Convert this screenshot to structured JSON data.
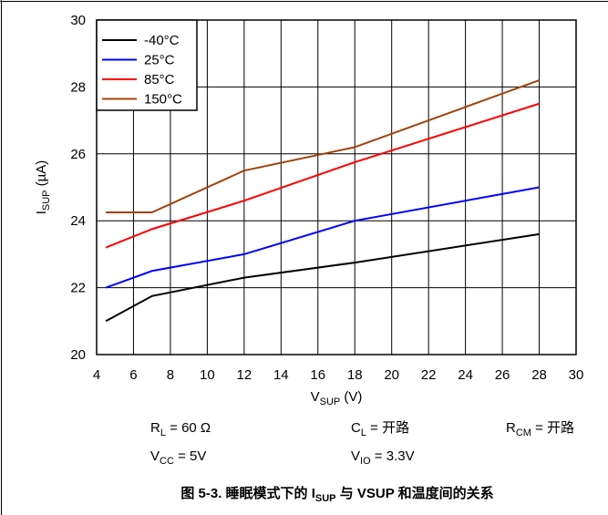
{
  "chart_data": {
    "type": "line",
    "xlabel": [
      {
        "text": "V"
      },
      {
        "text": "SUP",
        "sub": true
      },
      {
        "text": " (V)"
      }
    ],
    "ylabel": [
      {
        "text": "I"
      },
      {
        "text": "SUP",
        "sub": true
      },
      {
        "text": " (µA)"
      }
    ],
    "x": [
      4.5,
      7,
      12,
      18,
      28
    ],
    "series": [
      {
        "name": "-40°C",
        "color": "#000000",
        "values": [
          21,
          21.75,
          22.3,
          22.75,
          23.6
        ]
      },
      {
        "name": "25°C",
        "color": "#0000ff",
        "values": [
          22,
          22.5,
          23,
          24,
          25
        ]
      },
      {
        "name": "85°C",
        "color": "#ff0000",
        "values": [
          23.2,
          23.75,
          24.6,
          25.75,
          27.5
        ]
      },
      {
        "name": "150°C",
        "color": "#a0420a",
        "values": [
          24.25,
          24.25,
          25.5,
          26.2,
          28.2
        ]
      }
    ],
    "xlim": [
      4,
      30
    ],
    "xticks": [
      4,
      6,
      8,
      10,
      12,
      14,
      16,
      18,
      20,
      22,
      24,
      26,
      28,
      30
    ],
    "ylim": [
      20,
      30
    ],
    "yticks": [
      20,
      22,
      24,
      26,
      28,
      30
    ],
    "grid": true,
    "legend": "upper left",
    "notes": [
      [
        {
          "text": "R"
        },
        {
          "text": "L",
          "sub": true
        },
        {
          "text": " = 60 Ω"
        }
      ],
      [
        {
          "text": "C"
        },
        {
          "text": "L",
          "sub": true
        },
        {
          "text": " = 开路"
        }
      ],
      [
        {
          "text": "R"
        },
        {
          "text": "CM",
          "sub": true
        },
        {
          "text": " = 开路"
        }
      ],
      [
        {
          "text": "V"
        },
        {
          "text": "CC",
          "sub": true
        },
        {
          "text": " = 5V"
        }
      ],
      [
        {
          "text": "V"
        },
        {
          "text": "IO",
          "sub": true
        },
        {
          "text": " = 3.3V"
        }
      ]
    ],
    "caption": [
      {
        "text": "图 5-3. 睡眠模式下的 I"
      },
      {
        "text": "SUP",
        "sub": true
      },
      {
        "text": " 与 VSUP 和温度间的关系"
      }
    ]
  }
}
